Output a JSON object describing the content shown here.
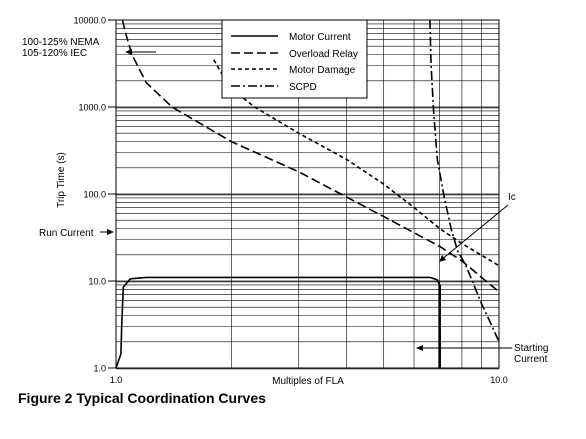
{
  "chart_data": {
    "type": "line",
    "title": "",
    "xlabel": "Multiples of FLA",
    "ylabel": "Trip Time (s)",
    "x_scale": "log",
    "y_scale": "log",
    "xlim": [
      1.0,
      10.0
    ],
    "ylim": [
      1.0,
      10000.0
    ],
    "x_tick_labels": [
      "1.0",
      "10.0"
    ],
    "y_tick_labels": [
      "1.0",
      "10.0",
      "100.0",
      "1000.0",
      "10000.0"
    ],
    "grid": true,
    "legend_placement": "top-center",
    "series": [
      {
        "name": "Motor Current",
        "style": "solid",
        "points": [
          [
            1.0,
            1.0
          ],
          [
            1.03,
            1.45
          ],
          [
            1.035,
            3.0
          ],
          [
            1.045,
            8.5
          ],
          [
            1.09,
            10.6
          ],
          [
            1.2,
            11.0
          ],
          [
            3.0,
            11.0
          ],
          [
            6.6,
            11.0
          ],
          [
            6.9,
            10.3
          ],
          [
            7.0,
            9.0
          ],
          [
            7.0,
            1.0
          ]
        ]
      },
      {
        "name": "Overload Relay",
        "style": "dash",
        "points": [
          [
            1.04,
            10000
          ],
          [
            1.06,
            7000
          ],
          [
            1.1,
            4000
          ],
          [
            1.2,
            1900
          ],
          [
            1.4,
            1000
          ],
          [
            2.0,
            400
          ],
          [
            3.0,
            180
          ],
          [
            5.0,
            55
          ],
          [
            7.0,
            25
          ],
          [
            8.0,
            17
          ],
          [
            10.0,
            7.5
          ]
        ]
      },
      {
        "name": "Motor Damage",
        "style": "dot-dash-short",
        "points": [
          [
            1.8,
            3500
          ],
          [
            1.9,
            2300
          ],
          [
            2.05,
            1500
          ],
          [
            2.3,
            1000
          ],
          [
            3.0,
            500
          ],
          [
            4.0,
            250
          ],
          [
            5.0,
            130
          ],
          [
            6.0,
            70
          ],
          [
            7.0,
            40
          ],
          [
            8.0,
            27
          ],
          [
            10.0,
            15
          ]
        ]
      },
      {
        "name": "SCPD",
        "style": "dashdot",
        "points": [
          [
            6.6,
            10000
          ],
          [
            6.65,
            3000
          ],
          [
            6.75,
            900
          ],
          [
            6.9,
            250
          ],
          [
            7.2,
            90
          ],
          [
            7.5,
            40
          ],
          [
            7.8,
            22
          ],
          [
            8.2,
            15
          ],
          [
            9.0,
            5.5
          ],
          [
            9.5,
            3.3
          ],
          [
            10.0,
            2.0
          ]
        ]
      }
    ],
    "annotations": {
      "nema": "100-125% NEMA",
      "iec": "105-120% IEC",
      "run_current": "Run Current",
      "ic": "Ic",
      "starting": "Starting",
      "current": "Current"
    }
  },
  "caption": "Figure 2 Typical Coordination Curves"
}
